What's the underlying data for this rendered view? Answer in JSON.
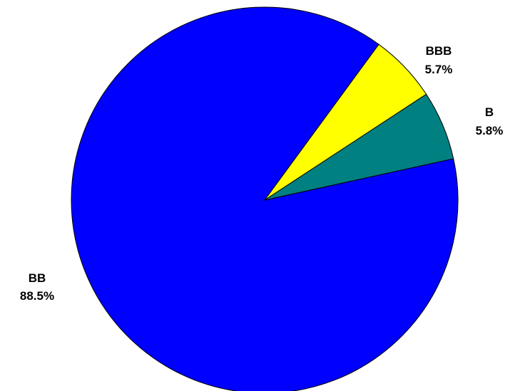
{
  "chart_data": {
    "type": "pie",
    "title": "",
    "legend": "none",
    "slices": [
      {
        "label": "BB",
        "value": 88.5,
        "value_label": "88.5%",
        "color": "#0000FF"
      },
      {
        "label": "BBB",
        "value": 5.7,
        "value_label": "5.7%",
        "color": "#FFFF00"
      },
      {
        "label": "B",
        "value": 5.8,
        "value_label": "5.8%",
        "color": "#008080"
      }
    ]
  }
}
